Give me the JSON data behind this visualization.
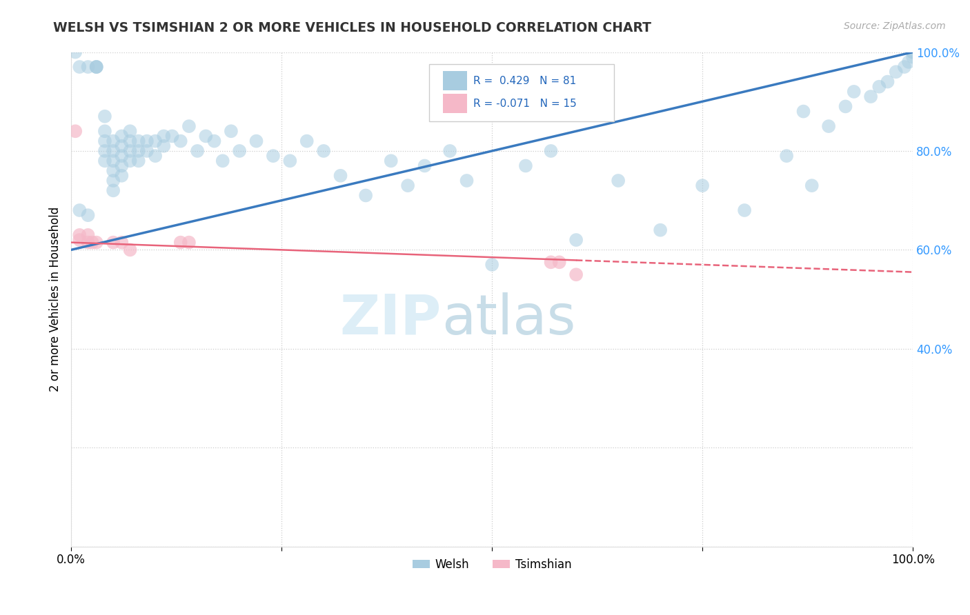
{
  "title": "WELSH VS TSIMSHIAN 2 OR MORE VEHICLES IN HOUSEHOLD CORRELATION CHART",
  "ylabel": "2 or more Vehicles in Household",
  "source_text": "Source: ZipAtlas.com",
  "welsh_R": 0.429,
  "welsh_N": 81,
  "tsimshian_R": -0.071,
  "tsimshian_N": 15,
  "xlim": [
    0.0,
    1.0
  ],
  "ylim": [
    0.0,
    1.0
  ],
  "xticks": [
    0.0,
    0.25,
    0.5,
    0.75,
    1.0
  ],
  "yticks": [
    0.0,
    0.2,
    0.4,
    0.6,
    0.8,
    1.0
  ],
  "xticklabels": [
    "0.0%",
    "",
    "",
    "",
    "100.0%"
  ],
  "yticklabels": [
    "",
    "",
    "40.0%",
    "60.0%",
    "80.0%",
    "100.0%"
  ],
  "welsh_color": "#a8cce0",
  "tsimshian_color": "#f5b8c8",
  "welsh_line_color": "#3a7abf",
  "tsimshian_line_color": "#e8637a",
  "watermark_color": "#ddeef7",
  "background_color": "#ffffff",
  "grid_color": "#cccccc",
  "legend_R_color": "#2266bb",
  "welsh_line_start_y": 0.6,
  "welsh_line_end_y": 1.0,
  "tsimshian_line_start_y": 0.615,
  "tsimshian_line_end_y": 0.555,
  "welsh_x": [
    0.005,
    0.01,
    0.01,
    0.02,
    0.02,
    0.03,
    0.03,
    0.03,
    0.04,
    0.04,
    0.04,
    0.04,
    0.04,
    0.05,
    0.05,
    0.05,
    0.05,
    0.05,
    0.05,
    0.06,
    0.06,
    0.06,
    0.06,
    0.06,
    0.07,
    0.07,
    0.07,
    0.07,
    0.08,
    0.08,
    0.08,
    0.09,
    0.09,
    0.1,
    0.1,
    0.11,
    0.11,
    0.12,
    0.13,
    0.14,
    0.15,
    0.16,
    0.17,
    0.18,
    0.19,
    0.2,
    0.22,
    0.24,
    0.26,
    0.28,
    0.3,
    0.32,
    0.35,
    0.38,
    0.4,
    0.42,
    0.45,
    0.47,
    0.5,
    0.54,
    0.57,
    0.6,
    0.65,
    0.7,
    0.75,
    0.8,
    0.85,
    0.87,
    0.88,
    0.9,
    0.92,
    0.93,
    0.95,
    0.96,
    0.97,
    0.98,
    0.99,
    0.995,
    1.0,
    1.0,
    1.0
  ],
  "welsh_y": [
    1.0,
    0.97,
    0.68,
    0.97,
    0.67,
    0.97,
    0.97,
    0.97,
    0.87,
    0.84,
    0.82,
    0.8,
    0.78,
    0.82,
    0.8,
    0.78,
    0.76,
    0.74,
    0.72,
    0.83,
    0.81,
    0.79,
    0.77,
    0.75,
    0.84,
    0.82,
    0.8,
    0.78,
    0.82,
    0.8,
    0.78,
    0.82,
    0.8,
    0.82,
    0.79,
    0.83,
    0.81,
    0.83,
    0.82,
    0.85,
    0.8,
    0.83,
    0.82,
    0.78,
    0.84,
    0.8,
    0.82,
    0.79,
    0.78,
    0.82,
    0.8,
    0.75,
    0.71,
    0.78,
    0.73,
    0.77,
    0.8,
    0.74,
    0.57,
    0.77,
    0.8,
    0.62,
    0.74,
    0.64,
    0.73,
    0.68,
    0.79,
    0.88,
    0.73,
    0.85,
    0.89,
    0.92,
    0.91,
    0.93,
    0.94,
    0.96,
    0.97,
    0.98,
    0.99,
    1.0,
    1.0
  ],
  "tsimshian_x": [
    0.005,
    0.01,
    0.01,
    0.02,
    0.02,
    0.025,
    0.03,
    0.05,
    0.06,
    0.07,
    0.13,
    0.14,
    0.57,
    0.58,
    0.6
  ],
  "tsimshian_y": [
    0.84,
    0.63,
    0.62,
    0.63,
    0.615,
    0.615,
    0.615,
    0.615,
    0.615,
    0.6,
    0.615,
    0.615,
    0.575,
    0.575,
    0.55
  ]
}
